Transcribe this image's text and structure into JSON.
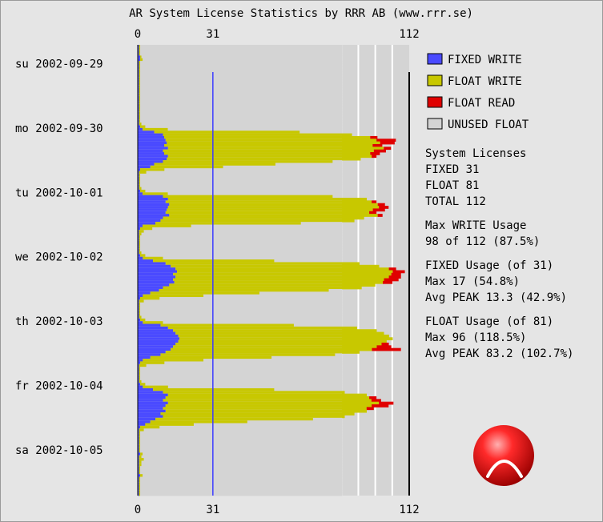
{
  "chart_data": {
    "type": "bar",
    "orientation": "horizontal",
    "title": "AR System License Statistics by RRR AB (www.rrr.se)",
    "x_ticks": [
      0,
      31,
      112
    ],
    "xlim": [
      0,
      112
    ],
    "reference_line": 31,
    "days": [
      "su 2002-09-29",
      "mo 2002-09-30",
      "tu 2002-10-01",
      "we 2002-10-02",
      "th 2002-10-03",
      "fr 2002-10-04",
      "sa 2002-10-05"
    ],
    "colors": {
      "fixed_write": "#4a4aff",
      "float_write": "#c8c800",
      "float_read": "#e00000",
      "unused_float": "#d4d4d4",
      "reference_line": "#3c3cff"
    },
    "series": [
      {
        "name": "FIXED WRITE",
        "values": [
          [
            0.5,
            0.5,
            0.5,
            0.5,
            1.0,
            1.0,
            0.5,
            0.5,
            0.5,
            0.5,
            0.5,
            0.5,
            0.5,
            0.5,
            0.5,
            0.5,
            0.5,
            0.5,
            0.5,
            0.5,
            0.5,
            0.5,
            0.5,
            0.5
          ],
          [
            0.5,
            0.5,
            0.5,
            0.5,
            0.5,
            0.5,
            1.0,
            2.0,
            6.8,
            10.4,
            10.9,
            11.5,
            12.0,
            10.9,
            12.5,
            10.4,
            10.9,
            12.5,
            12.0,
            10.4,
            6.8,
            5.2,
            1.0,
            0.5
          ],
          [
            0.5,
            0.5,
            0.5,
            0.5,
            0.5,
            0.5,
            1.0,
            2.0,
            10.4,
            12.5,
            11.5,
            13.0,
            12.5,
            12.0,
            11.5,
            13.0,
            10.4,
            9.4,
            7.3,
            2.0,
            1.0,
            0.5,
            0.5,
            0.5
          ],
          [
            0.5,
            0.5,
            0.5,
            0.5,
            0.5,
            0.5,
            1.0,
            2.1,
            6.3,
            11.5,
            13.6,
            15.6,
            16.2,
            14.6,
            15.6,
            14.6,
            15.1,
            13.0,
            10.4,
            8.8,
            5.2,
            2.1,
            1.0,
            0.5
          ],
          [
            0.5,
            0.5,
            0.5,
            0.5,
            0.5,
            0.5,
            1.0,
            2.1,
            9.4,
            12.5,
            14.6,
            15.6,
            16.7,
            17.2,
            16.7,
            15.6,
            14.6,
            13.6,
            11.5,
            9.4,
            5.2,
            2.1,
            1.0,
            0.5
          ],
          [
            0.5,
            0.5,
            0.5,
            0.5,
            0.5,
            0.5,
            1.0,
            2.1,
            6.3,
            10.4,
            12.5,
            11.5,
            10.4,
            12.5,
            11.5,
            10.4,
            11.5,
            9.4,
            10.4,
            7.3,
            5.2,
            3.1,
            1.0,
            0.5
          ],
          [
            0.5,
            0.5,
            0.5,
            0.5,
            0.5,
            0.5,
            0.5,
            0.5,
            1.0,
            0.5,
            0.5,
            0.5,
            0.5,
            0.5,
            0.5,
            0.5,
            1.0,
            0.5,
            0.5,
            0.5,
            0.5,
            0.5,
            0.5,
            0.5
          ]
        ]
      },
      {
        "name": "FLOAT WRITE",
        "values": [
          [
            0.5,
            0.5,
            0.5,
            0.5,
            0.5,
            1.0,
            0.5,
            0.5,
            0.5,
            0.5,
            0.5,
            0.5,
            0.5,
            0.5,
            0.5,
            0.5,
            0.5,
            0.5,
            0.5,
            0.5,
            0.5,
            0.5,
            0.5,
            0.5
          ],
          [
            0.5,
            0.5,
            0.5,
            0.5,
            0.5,
            1.0,
            2.1,
            10.4,
            60.0,
            78.0,
            85.0,
            87.0,
            88.0,
            86.0,
            89.0,
            87.0,
            85.0,
            84.0,
            80.0,
            70.0,
            50.0,
            30.0,
            10.0,
            3.0
          ],
          [
            0.5,
            0.5,
            0.5,
            0.5,
            0.5,
            1.0,
            2.1,
            10.4,
            70.0,
            82.0,
            85.0,
            86.0,
            87.0,
            85.0,
            84.0,
            86.0,
            83.0,
            80.0,
            60.0,
            20.0,
            5.0,
            2.0,
            1.0,
            0.5
          ],
          [
            0.5,
            0.5,
            0.5,
            0.5,
            0.5,
            1.0,
            2.1,
            8.3,
            50.0,
            80.0,
            86.0,
            88.0,
            89.0,
            90.0,
            88.0,
            87.0,
            86.0,
            85.0,
            82.0,
            70.0,
            45.0,
            25.0,
            8.0,
            2.0
          ],
          [
            0.5,
            0.5,
            0.5,
            0.5,
            0.5,
            1.0,
            2.1,
            8.3,
            55.0,
            78.0,
            84.0,
            86.0,
            87.0,
            88.0,
            86.0,
            85.0,
            84.0,
            83.0,
            80.0,
            72.0,
            50.0,
            25.0,
            10.0,
            3.0
          ],
          [
            0.5,
            0.5,
            0.5,
            0.5,
            0.5,
            1.0,
            2.1,
            10.4,
            50.0,
            75.0,
            82.0,
            84.0,
            86.0,
            87.0,
            85.0,
            84.0,
            83.0,
            80.0,
            75.0,
            65.0,
            40.0,
            20.0,
            8.0,
            2.0
          ],
          [
            0.5,
            0.5,
            0.5,
            0.5,
            0.5,
            0.5,
            0.5,
            0.5,
            1.0,
            1.0,
            2.0,
            1.0,
            1.0,
            0.5,
            0.5,
            0.5,
            1.0,
            0.5,
            0.5,
            0.5,
            0.5,
            0.5,
            0.5,
            0.5
          ]
        ]
      },
      {
        "name": "FLOAT READ",
        "values": [
          [
            0,
            0,
            0,
            0,
            0,
            0,
            0,
            0,
            0,
            0,
            0,
            0,
            0,
            0,
            0,
            0,
            0,
            0,
            0,
            0,
            0,
            0,
            0,
            0
          ],
          [
            0,
            0,
            0,
            0,
            0,
            0,
            0,
            0,
            0,
            0,
            3.0,
            8.0,
            6.0,
            4.0,
            3.0,
            5.0,
            4.0,
            2.0,
            0,
            0,
            0,
            0,
            0,
            0
          ],
          [
            0,
            0,
            0,
            0,
            0,
            0,
            0,
            0,
            0,
            0,
            2.0,
            3.0,
            4.0,
            5.0,
            3.0,
            2.0,
            0,
            0,
            0,
            0,
            0,
            0,
            0,
            0
          ],
          [
            0,
            0,
            0,
            0,
            0,
            0,
            0,
            0,
            0,
            0,
            0,
            3.0,
            5.0,
            4.0,
            5.0,
            6.0,
            4.0,
            0,
            0,
            0,
            0,
            0,
            0,
            0
          ],
          [
            0,
            0,
            0,
            0,
            0,
            0,
            0,
            0,
            0,
            0,
            0,
            0,
            0,
            0,
            0,
            3.0,
            6.0,
            12.0,
            0,
            0,
            0,
            0,
            0,
            0
          ],
          [
            0,
            0,
            0,
            0,
            0,
            0,
            0,
            0,
            0,
            0,
            0,
            3.0,
            4.0,
            6.0,
            7.0,
            3.0,
            0,
            0,
            0,
            0,
            0,
            0,
            0,
            0
          ],
          [
            0,
            0,
            0,
            0,
            0,
            0,
            0,
            0,
            0,
            0,
            0,
            0,
            0,
            0,
            0,
            0,
            0,
            0,
            0,
            0,
            0,
            0,
            0,
            0
          ]
        ]
      },
      {
        "name": "UNUSED FLOAT",
        "values": [
          [
            84.3,
            84.3,
            84.3,
            84.3,
            84.3,
            84.3,
            84.3,
            84.3,
            84.3,
            84.3,
            84.3,
            84.3,
            84.3,
            84.3,
            84.3,
            84.3,
            84.3,
            84.3,
            84.3,
            84.3,
            84.3,
            84.3,
            84.3,
            84.3
          ],
          [
            84.3,
            84.3,
            84.3,
            84.3,
            84.3,
            84.3,
            84.3,
            84.3,
            84.3,
            84.3,
            84.3,
            84.3,
            84.3,
            84.3,
            84.3,
            84.3,
            84.3,
            84.3,
            84.3,
            84.3,
            84.3,
            84.3,
            84.3,
            84.3
          ],
          [
            84.3,
            84.3,
            84.3,
            84.3,
            84.3,
            84.3,
            84.3,
            84.3,
            84.3,
            84.3,
            84.3,
            84.3,
            84.3,
            84.3,
            84.3,
            84.3,
            84.3,
            84.3,
            84.3,
            84.3,
            84.3,
            84.3,
            84.3,
            84.3
          ],
          [
            84.3,
            84.3,
            84.3,
            84.3,
            84.3,
            84.3,
            84.3,
            84.3,
            84.3,
            84.3,
            84.3,
            84.3,
            84.3,
            84.3,
            84.3,
            84.3,
            84.3,
            84.3,
            84.3,
            84.3,
            84.3,
            84.3,
            84.3,
            84.3
          ],
          [
            84.3,
            84.3,
            84.3,
            84.3,
            84.3,
            84.3,
            84.3,
            84.3,
            84.3,
            84.3,
            84.3,
            84.3,
            84.3,
            84.3,
            84.3,
            84.3,
            84.3,
            84.3,
            84.3,
            84.3,
            84.3,
            84.3,
            84.3,
            84.3
          ],
          [
            84.3,
            84.3,
            84.3,
            84.3,
            84.3,
            84.3,
            84.3,
            84.3,
            84.3,
            84.3,
            84.3,
            84.3,
            84.3,
            84.3,
            84.3,
            84.3,
            84.3,
            84.3,
            84.3,
            84.3,
            84.3,
            84.3,
            84.3,
            84.3
          ],
          [
            84.3,
            84.3,
            84.3,
            84.3,
            84.3,
            84.3,
            84.3,
            84.3,
            84.3,
            84.3,
            84.3,
            84.3,
            84.3,
            84.3,
            84.3,
            84.3,
            84.3,
            84.3,
            84.3,
            84.3,
            84.3,
            84.3,
            84.3,
            84.3
          ]
        ]
      }
    ],
    "legend": [
      {
        "name": "FIXED WRITE",
        "color": "#4a4aff"
      },
      {
        "name": "FLOAT WRITE",
        "color": "#c8c800"
      },
      {
        "name": "FLOAT READ",
        "color": "#e00000"
      },
      {
        "name": "UNUSED FLOAT",
        "color": "#d4d4d4"
      }
    ],
    "legend_position": "right",
    "stats": [
      [
        "System Licenses",
        "FIXED 31",
        "FLOAT 81",
        "TOTAL 112"
      ],
      [
        "Max WRITE Usage",
        "98 of 112 (87.5%)"
      ],
      [
        "FIXED Usage (of 31)",
        "Max 17 (54.8%)",
        "Avg PEAK 13.3 (42.9%)"
      ],
      [
        "FLOAT Usage (of 81)",
        "Max 96 (118.5%)",
        "Avg PEAK 83.2 (102.7%)"
      ]
    ],
    "logo": {
      "name": "red-ball-logo",
      "colors": [
        "#ff2a2a",
        "#990000"
      ]
    }
  }
}
